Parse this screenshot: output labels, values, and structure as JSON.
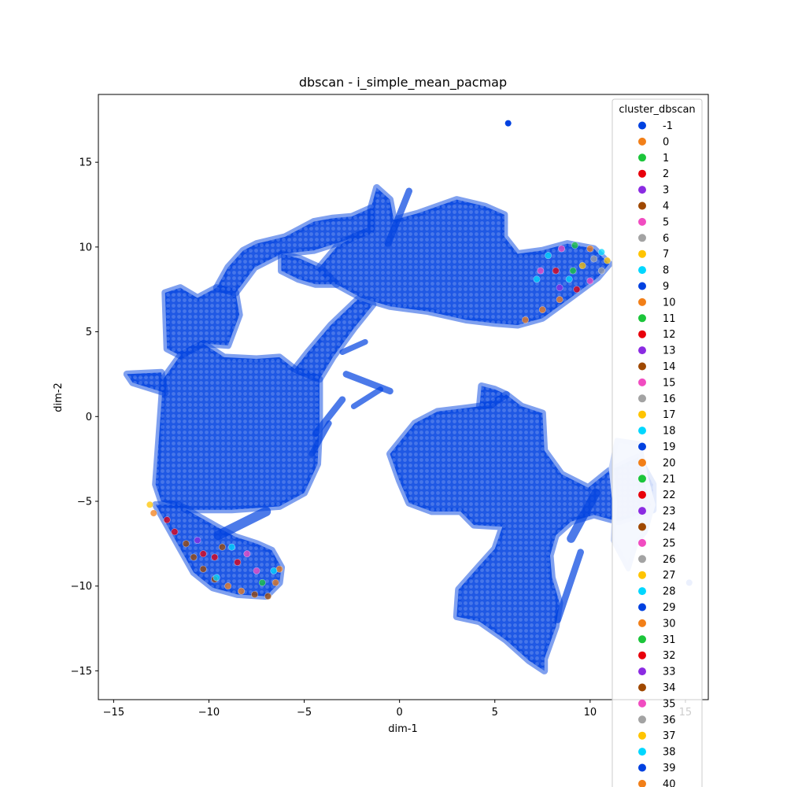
{
  "chart_data": {
    "type": "scatter",
    "title": "dbscan - i_simple_mean_pacmap",
    "xlabel": "dim-1",
    "ylabel": "dim-2",
    "xlim": [
      -15.8,
      16.2
    ],
    "ylim": [
      -16.7,
      19.0
    ],
    "x_ticks": [
      -15,
      -10,
      -5,
      0,
      5,
      10,
      15
    ],
    "y_ticks": [
      -15,
      -10,
      -5,
      0,
      5,
      10,
      15
    ],
    "x_tick_labels": [
      "−15",
      "−10",
      "−5",
      "0",
      "5",
      "10",
      "15"
    ],
    "y_tick_labels": [
      "−15",
      "−10",
      "−5",
      "0",
      "5",
      "10",
      "15"
    ],
    "grid": false,
    "point_alpha": 0.5,
    "legend": {
      "title": "cluster_dbscan",
      "placement": "right, overflowing bottom",
      "entries": [
        {
          "label": "-1",
          "color": "#0041e0"
        },
        {
          "label": "0",
          "color": "#f27f18"
        },
        {
          "label": "1",
          "color": "#1bc53a"
        },
        {
          "label": "2",
          "color": "#e8000b"
        },
        {
          "label": "3",
          "color": "#8b2be2"
        },
        {
          "label": "4",
          "color": "#9f4800"
        },
        {
          "label": "5",
          "color": "#f14cc1"
        },
        {
          "label": "6",
          "color": "#a3a3a3"
        },
        {
          "label": "7",
          "color": "#ffc400"
        },
        {
          "label": "8",
          "color": "#00d7ff"
        },
        {
          "label": "9",
          "color": "#0041e0"
        },
        {
          "label": "10",
          "color": "#f27f18"
        },
        {
          "label": "11",
          "color": "#1bc53a"
        },
        {
          "label": "12",
          "color": "#e8000b"
        },
        {
          "label": "13",
          "color": "#8b2be2"
        },
        {
          "label": "14",
          "color": "#9f4800"
        },
        {
          "label": "15",
          "color": "#f14cc1"
        },
        {
          "label": "16",
          "color": "#a3a3a3"
        },
        {
          "label": "17",
          "color": "#ffc400"
        },
        {
          "label": "18",
          "color": "#00d7ff"
        },
        {
          "label": "19",
          "color": "#0041e0"
        },
        {
          "label": "20",
          "color": "#f27f18"
        },
        {
          "label": "21",
          "color": "#1bc53a"
        },
        {
          "label": "22",
          "color": "#e8000b"
        },
        {
          "label": "23",
          "color": "#8b2be2"
        },
        {
          "label": "24",
          "color": "#9f4800"
        },
        {
          "label": "25",
          "color": "#f14cc1"
        },
        {
          "label": "26",
          "color": "#a3a3a3"
        },
        {
          "label": "27",
          "color": "#ffc400"
        },
        {
          "label": "28",
          "color": "#00d7ff"
        },
        {
          "label": "29",
          "color": "#0041e0"
        },
        {
          "label": "30",
          "color": "#f27f18"
        },
        {
          "label": "31",
          "color": "#1bc53a"
        },
        {
          "label": "32",
          "color": "#e8000b"
        },
        {
          "label": "33",
          "color": "#8b2be2"
        },
        {
          "label": "34",
          "color": "#9f4800"
        },
        {
          "label": "35",
          "color": "#f14cc1"
        },
        {
          "label": "36",
          "color": "#a3a3a3"
        },
        {
          "label": "37",
          "color": "#ffc400"
        },
        {
          "label": "38",
          "color": "#00d7ff"
        },
        {
          "label": "39",
          "color": "#0041e0"
        },
        {
          "label": "40",
          "color": "#f27f18"
        }
      ]
    },
    "regions": [
      {
        "name": "left-block",
        "cluster": "-1",
        "polygon": [
          [
            -12.8,
            -4.0
          ],
          [
            -12.4,
            2.2
          ],
          [
            -11.5,
            3.6
          ],
          [
            -10.3,
            4.3
          ],
          [
            -9.2,
            3.5
          ],
          [
            -7.5,
            3.4
          ],
          [
            -6.3,
            3.5
          ],
          [
            -5.5,
            2.8
          ],
          [
            -4.2,
            2.2
          ],
          [
            -4.2,
            -0.5
          ],
          [
            -4.3,
            -2.8
          ],
          [
            -5.0,
            -4.5
          ],
          [
            -6.3,
            -5.3
          ],
          [
            -8.8,
            -5.5
          ],
          [
            -11.0,
            -5.5
          ],
          [
            -12.5,
            -5.0
          ]
        ]
      },
      {
        "name": "left-tail",
        "cluster": "-1",
        "polygon": [
          [
            -14.3,
            2.5
          ],
          [
            -12.5,
            2.6
          ],
          [
            -12.3,
            1.4
          ],
          [
            -14.0,
            2.0
          ]
        ]
      },
      {
        "name": "left-upper-arm",
        "cluster": "-1",
        "polygon": [
          [
            -12.2,
            4.0
          ],
          [
            -12.3,
            7.3
          ],
          [
            -11.5,
            7.6
          ],
          [
            -10.6,
            7.0
          ],
          [
            -9.6,
            7.6
          ],
          [
            -8.6,
            7.3
          ],
          [
            -8.4,
            6.0
          ],
          [
            -9.0,
            4.2
          ],
          [
            -10.3,
            4.3
          ],
          [
            -11.5,
            3.6
          ]
        ]
      },
      {
        "name": "upper-arc",
        "cluster": "-1",
        "polygon": [
          [
            -9.6,
            7.6
          ],
          [
            -9.0,
            8.8
          ],
          [
            -8.2,
            9.8
          ],
          [
            -7.5,
            10.2
          ],
          [
            -6.0,
            10.6
          ],
          [
            -4.5,
            11.5
          ],
          [
            -3.5,
            11.7
          ],
          [
            -2.5,
            11.8
          ],
          [
            -1.5,
            12.3
          ],
          [
            -1.5,
            11.0
          ],
          [
            -2.8,
            10.4
          ],
          [
            -4.5,
            9.8
          ],
          [
            -6.2,
            9.6
          ],
          [
            -7.6,
            8.8
          ],
          [
            -8.6,
            7.3
          ]
        ]
      },
      {
        "name": "upper-main",
        "cluster": "-1",
        "polygon": [
          [
            -1.5,
            12.3
          ],
          [
            -1.2,
            13.5
          ],
          [
            -0.5,
            12.8
          ],
          [
            -0.3,
            11.6
          ],
          [
            1.0,
            12.0
          ],
          [
            3.0,
            12.8
          ],
          [
            4.5,
            12.4
          ],
          [
            5.5,
            11.9
          ],
          [
            5.5,
            10.6
          ],
          [
            6.2,
            9.6
          ],
          [
            7.5,
            9.8
          ],
          [
            8.8,
            10.2
          ],
          [
            10.2,
            9.9
          ],
          [
            11.0,
            9.0
          ],
          [
            10.4,
            8.2
          ],
          [
            9.2,
            7.2
          ],
          [
            7.5,
            5.8
          ],
          [
            6.2,
            5.4
          ],
          [
            5.0,
            5.5
          ],
          [
            3.5,
            5.7
          ],
          [
            1.5,
            6.2
          ],
          [
            -0.5,
            6.5
          ],
          [
            -2.0,
            7.0
          ],
          [
            -3.3,
            7.8
          ],
          [
            -4.2,
            8.8
          ],
          [
            -3.3,
            10.0
          ],
          [
            -2.4,
            10.6
          ],
          [
            -1.5,
            11.0
          ]
        ]
      },
      {
        "name": "upper-left-lobe",
        "cluster": "-1",
        "polygon": [
          [
            -4.2,
            8.8
          ],
          [
            -5.2,
            9.3
          ],
          [
            -6.2,
            9.6
          ],
          [
            -6.2,
            8.6
          ],
          [
            -5.3,
            8.1
          ],
          [
            -4.4,
            7.8
          ],
          [
            -3.3,
            7.8
          ]
        ]
      },
      {
        "name": "connector",
        "cluster": "-1",
        "polygon": [
          [
            -5.5,
            2.8
          ],
          [
            -4.8,
            3.8
          ],
          [
            -3.6,
            5.4
          ],
          [
            -2.2,
            6.9
          ],
          [
            -1.4,
            6.6
          ],
          [
            -2.4,
            5.2
          ],
          [
            -3.5,
            3.5
          ],
          [
            -4.2,
            2.2
          ]
        ]
      },
      {
        "name": "lower-left-blob",
        "cluster": "-1",
        "polygon": [
          [
            -12.8,
            -5.2
          ],
          [
            -12.2,
            -6.4
          ],
          [
            -11.5,
            -7.8
          ],
          [
            -10.8,
            -9.2
          ],
          [
            -9.8,
            -10.1
          ],
          [
            -8.5,
            -10.5
          ],
          [
            -7.0,
            -10.6
          ],
          [
            -6.3,
            -9.8
          ],
          [
            -6.2,
            -8.9
          ],
          [
            -6.7,
            -7.9
          ],
          [
            -7.5,
            -7.5
          ],
          [
            -8.6,
            -7.1
          ],
          [
            -9.6,
            -6.5
          ],
          [
            -10.7,
            -5.8
          ],
          [
            -11.6,
            -5.2
          ]
        ]
      },
      {
        "name": "right-central",
        "cluster": "-1",
        "polygon": [
          [
            -0.5,
            -2.2
          ],
          [
            0.8,
            -0.4
          ],
          [
            2.0,
            0.3
          ],
          [
            3.5,
            0.5
          ],
          [
            4.8,
            0.7
          ],
          [
            5.6,
            1.3
          ],
          [
            6.4,
            0.6
          ],
          [
            7.5,
            0.2
          ],
          [
            7.6,
            -2.0
          ],
          [
            8.5,
            -3.4
          ],
          [
            9.9,
            -4.2
          ],
          [
            11.0,
            -3.2
          ],
          [
            12.5,
            -2.4
          ],
          [
            13.3,
            -4.0
          ],
          [
            13.3,
            -5.5
          ],
          [
            11.5,
            -6.2
          ],
          [
            10.2,
            -5.8
          ],
          [
            9.0,
            -6.2
          ],
          [
            8.2,
            -7.0
          ],
          [
            7.9,
            -8.2
          ],
          [
            8.0,
            -9.5
          ],
          [
            8.4,
            -11.0
          ],
          [
            8.2,
            -12.4
          ],
          [
            7.6,
            -14.3
          ],
          [
            7.6,
            -15.0
          ],
          [
            6.8,
            -14.4
          ],
          [
            5.6,
            -13.2
          ],
          [
            4.2,
            -12.1
          ],
          [
            3.0,
            -11.8
          ],
          [
            3.1,
            -10.2
          ],
          [
            4.2,
            -8.8
          ],
          [
            5.0,
            -7.8
          ],
          [
            5.4,
            -6.5
          ],
          [
            3.9,
            -6.4
          ],
          [
            3.2,
            -5.6
          ],
          [
            1.7,
            -5.6
          ],
          [
            0.5,
            -5.1
          ],
          [
            0.0,
            -3.8
          ]
        ]
      },
      {
        "name": "right-upper-spike",
        "cluster": "-1",
        "polygon": [
          [
            4.2,
            0.6
          ],
          [
            4.3,
            1.8
          ],
          [
            5.0,
            1.6
          ],
          [
            5.6,
            1.3
          ],
          [
            4.8,
            0.7
          ]
        ]
      }
    ],
    "strokes": [
      {
        "cluster": "-1",
        "from": [
          -4.4,
          -1.0
        ],
        "to": [
          -3.0,
          1.0
        ],
        "width_data": 0.35
      },
      {
        "cluster": "-1",
        "from": [
          -3.0,
          3.8
        ],
        "to": [
          -1.8,
          4.4
        ],
        "width_data": 0.3
      },
      {
        "cluster": "-1",
        "from": [
          -2.8,
          2.5
        ],
        "to": [
          -0.5,
          1.5
        ],
        "width_data": 0.35
      },
      {
        "cluster": "-1",
        "from": [
          -2.4,
          0.6
        ],
        "to": [
          -1.0,
          1.6
        ],
        "width_data": 0.3
      },
      {
        "cluster": "-1",
        "from": [
          -4.6,
          -2.2
        ],
        "to": [
          -3.7,
          -0.4
        ],
        "width_data": 0.3
      },
      {
        "cluster": "-1",
        "from": [
          -0.6,
          10.2
        ],
        "to": [
          0.5,
          13.3
        ],
        "width_data": 0.35
      },
      {
        "cluster": "-1",
        "from": [
          -9.5,
          -7.0
        ],
        "to": [
          -7.0,
          -5.6
        ],
        "width_data": 0.5
      },
      {
        "cluster": "-1",
        "from": [
          9.0,
          -7.2
        ],
        "to": [
          10.3,
          -4.5
        ],
        "width_data": 0.45
      },
      {
        "cluster": "-1",
        "from": [
          8.3,
          -12.0
        ],
        "to": [
          9.5,
          -8.0
        ],
        "width_data": 0.35
      }
    ],
    "fringe_regions": [
      {
        "name": "upper-right-fringe",
        "cluster": "-1",
        "color": "#c9d6f7",
        "polygon": [
          [
            11.4,
            -1.4
          ],
          [
            12.6,
            -1.6
          ],
          [
            12.9,
            -3.5
          ],
          [
            13.3,
            -5.2
          ],
          [
            12.9,
            -6.8
          ],
          [
            12.4,
            -7.5
          ],
          [
            12.0,
            -9.0
          ],
          [
            11.2,
            -7.3
          ],
          [
            11.3,
            -5.2
          ],
          [
            11.1,
            -3.0
          ]
        ]
      }
    ],
    "colored_edges": [
      {
        "name": "upper-right-tip",
        "points": [
          [
            6.6,
            5.7
          ],
          [
            7.5,
            6.3
          ],
          [
            8.4,
            6.9
          ],
          [
            9.3,
            7.5
          ],
          [
            10.0,
            8.0
          ],
          [
            10.6,
            8.6
          ],
          [
            10.9,
            9.2
          ],
          [
            10.6,
            9.7
          ],
          [
            10.0,
            9.9
          ],
          [
            9.2,
            10.1
          ],
          [
            8.5,
            9.9
          ],
          [
            7.8,
            9.5
          ],
          [
            7.4,
            8.6
          ],
          [
            8.2,
            8.6
          ],
          [
            8.9,
            8.1
          ],
          [
            9.6,
            8.9
          ],
          [
            8.4,
            7.6
          ],
          [
            9.1,
            8.6
          ],
          [
            10.2,
            9.3
          ],
          [
            7.2,
            8.1
          ]
        ],
        "clusters": [
          "30",
          "0",
          "20",
          "2",
          "5",
          "6",
          "7",
          "8",
          "10",
          "1",
          "15",
          "28",
          "25",
          "22",
          "18",
          "37",
          "3",
          "11",
          "26",
          "38"
        ]
      },
      {
        "name": "lower-left-tip",
        "points": [
          [
            -13.1,
            -5.2
          ],
          [
            -12.9,
            -5.7
          ],
          [
            -12.2,
            -6.1
          ],
          [
            -11.8,
            -6.8
          ],
          [
            -11.2,
            -7.5
          ],
          [
            -10.8,
            -8.3
          ],
          [
            -10.3,
            -9.0
          ],
          [
            -9.7,
            -9.6
          ],
          [
            -9.0,
            -10.0
          ],
          [
            -8.3,
            -10.3
          ],
          [
            -7.6,
            -10.5
          ],
          [
            -6.9,
            -10.6
          ],
          [
            -6.5,
            -9.8
          ],
          [
            -6.3,
            -9.0
          ],
          [
            -9.3,
            -7.7
          ],
          [
            -8.8,
            -7.7
          ],
          [
            -10.3,
            -8.1
          ],
          [
            -9.7,
            -8.3
          ],
          [
            -8.5,
            -8.6
          ],
          [
            -7.5,
            -9.1
          ],
          [
            -10.6,
            -7.3
          ],
          [
            -9.6,
            -9.5
          ],
          [
            -7.2,
            -9.8
          ],
          [
            -8.0,
            -8.1
          ],
          [
            -6.6,
            -9.1
          ]
        ],
        "clusters": [
          "7",
          "30",
          "2",
          "22",
          "4",
          "14",
          "24",
          "34",
          "0",
          "10",
          "4",
          "14",
          "20",
          "30",
          "34",
          "28",
          "2",
          "12",
          "32",
          "5",
          "3",
          "8",
          "1",
          "25",
          "18"
        ]
      }
    ],
    "isolated_points": [
      {
        "cluster": "-1",
        "x": 5.7,
        "y": 17.3
      },
      {
        "cluster": "-1",
        "x": 15.2,
        "y": -9.8
      }
    ]
  }
}
